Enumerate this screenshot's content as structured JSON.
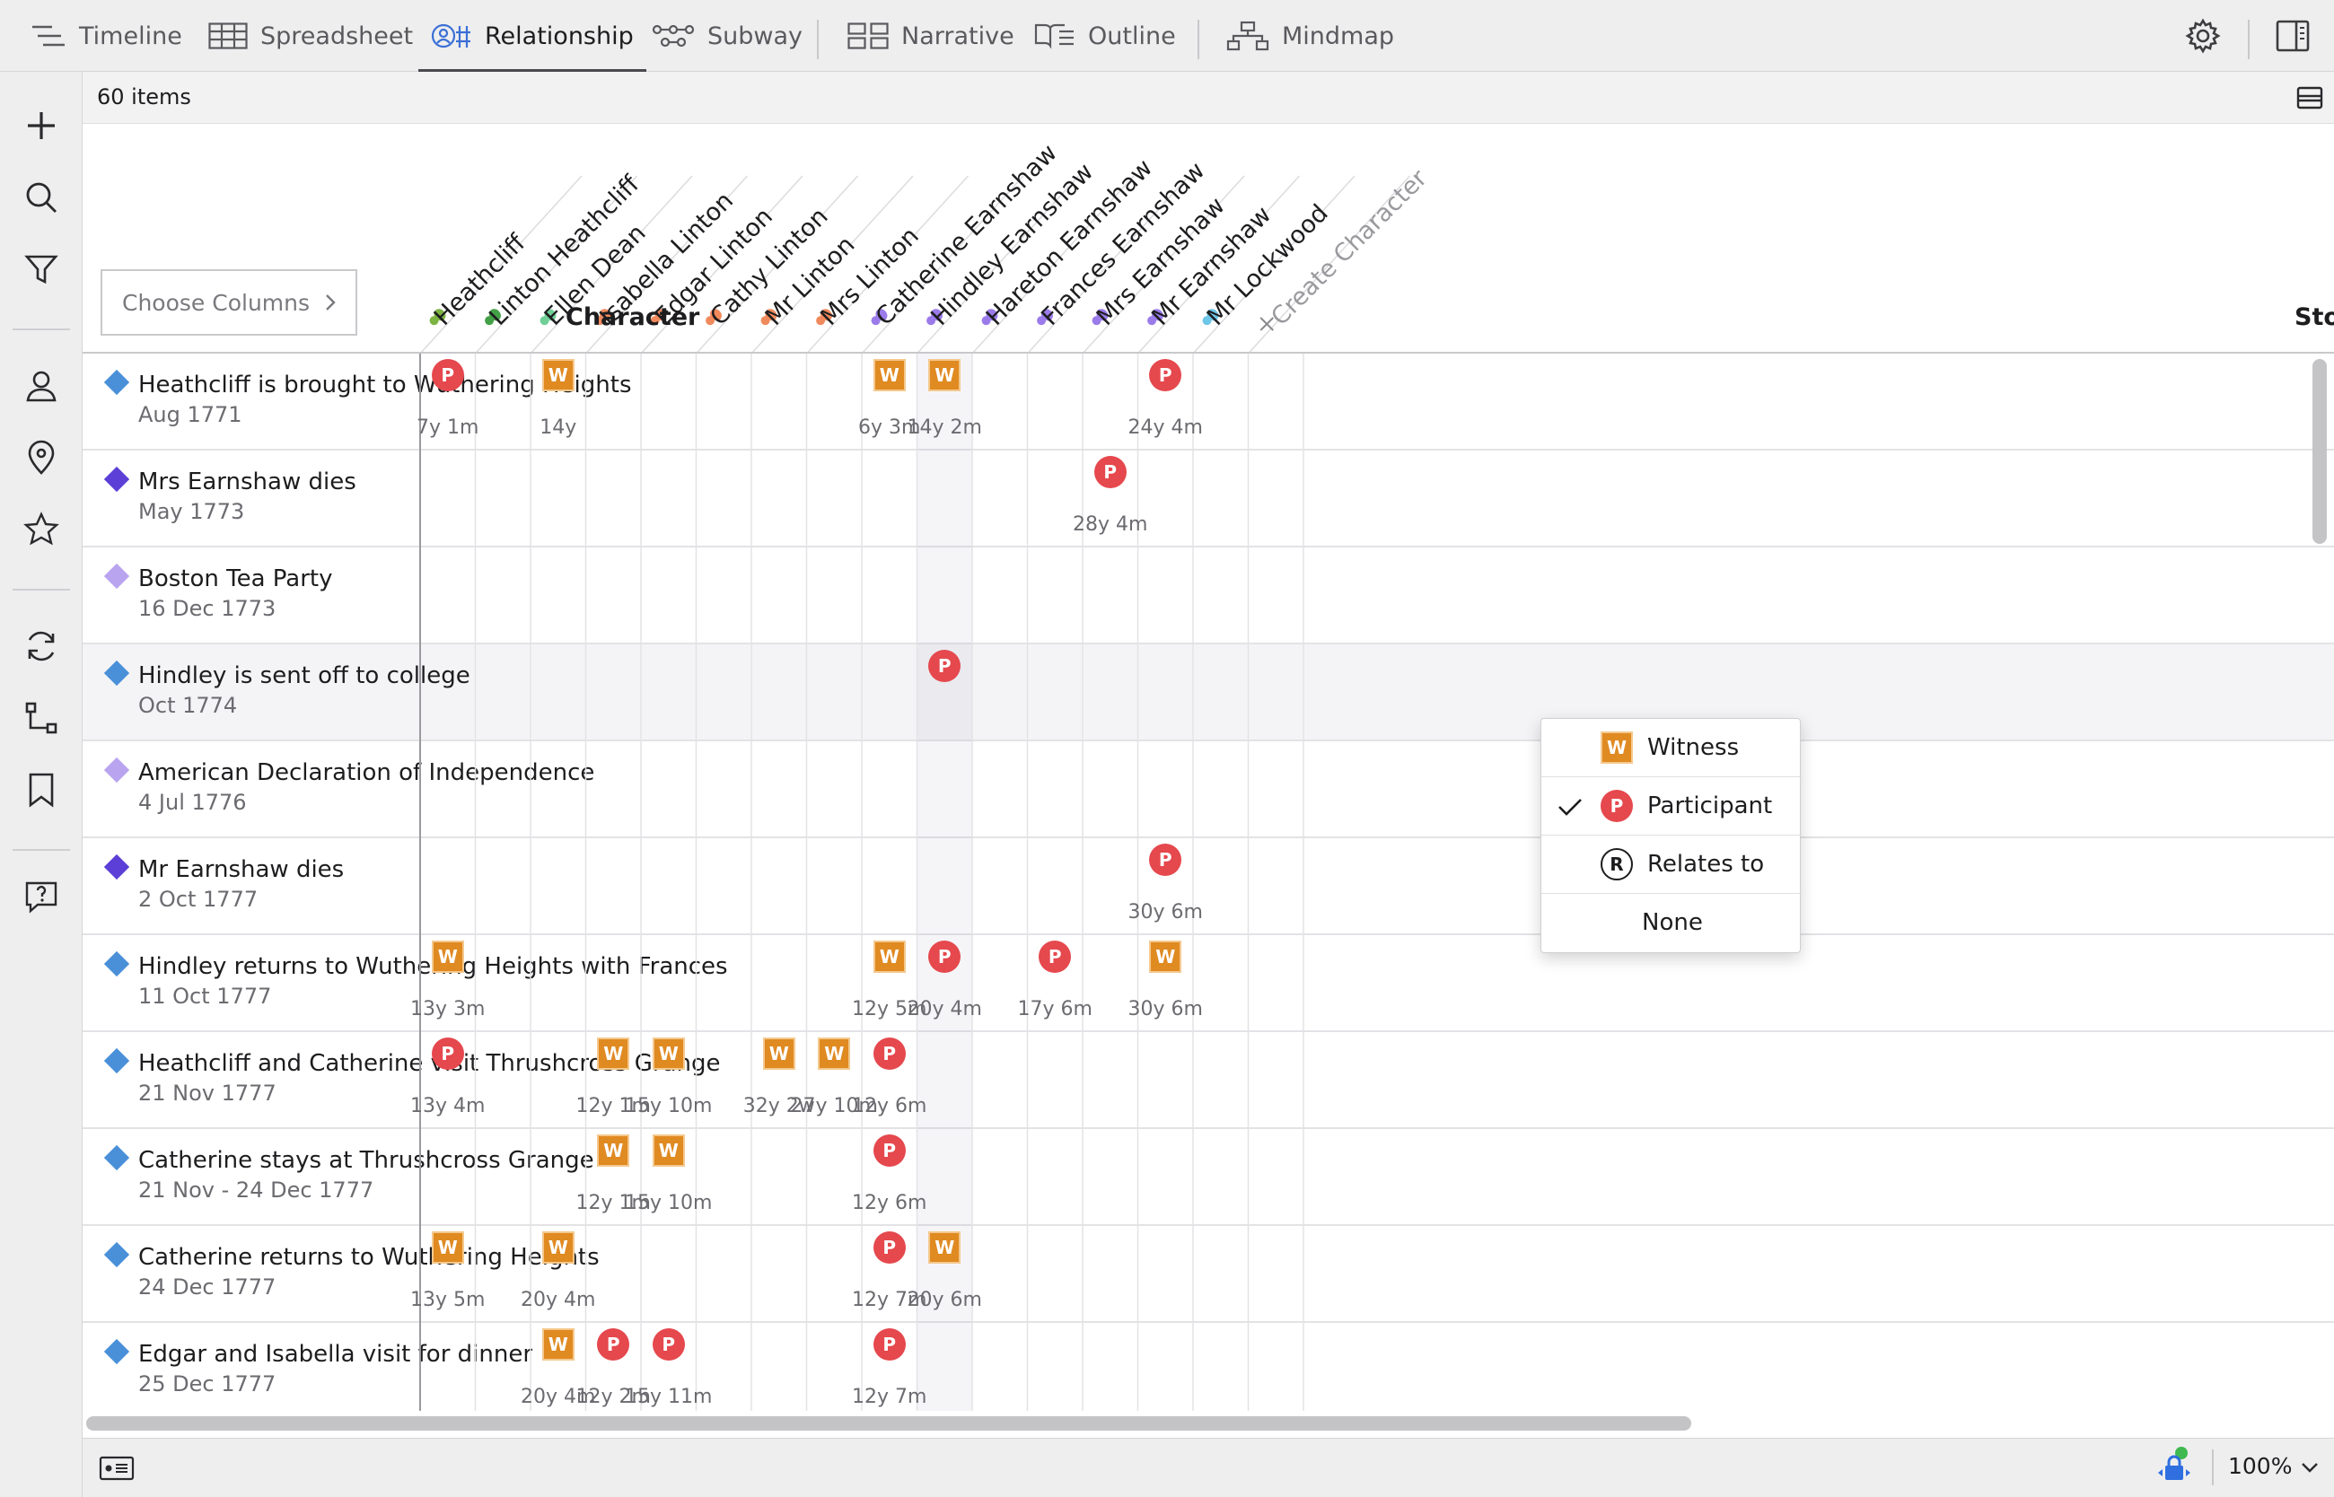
{
  "tabs": [
    {
      "label": "Timeline",
      "icon": "timeline-icon"
    },
    {
      "label": "Spreadsheet",
      "icon": "spreadsheet-icon"
    },
    {
      "label": "Relationship",
      "icon": "relationship-icon",
      "active": true
    },
    {
      "label": "Subway",
      "icon": "subway-icon"
    },
    {
      "label": "Narrative",
      "icon": "narrative-icon"
    },
    {
      "label": "Outline",
      "icon": "outline-icon"
    },
    {
      "label": "Mindmap",
      "icon": "mindmap-icon"
    }
  ],
  "toolbar": {
    "count": "60 items"
  },
  "header": {
    "choose_columns": "Choose Columns",
    "character_label": "Character",
    "next_column_label": "Sto",
    "create_character": "Create Character"
  },
  "columns": [
    {
      "name": "Heathcliff",
      "color": "#7cb342"
    },
    {
      "name": "Linton Heathcliff",
      "color": "#43a047"
    },
    {
      "name": "Ellen Dean",
      "color": "#6fcf97"
    },
    {
      "name": "Isabella Linton",
      "color": "#f08a5d"
    },
    {
      "name": "Edgar Linton",
      "color": "#f08a5d"
    },
    {
      "name": "Cathy Linton",
      "color": "#f08a5d"
    },
    {
      "name": "Mr Linton",
      "color": "#f08a5d"
    },
    {
      "name": "Mrs Linton",
      "color": "#f08a5d"
    },
    {
      "name": "Catherine Earnshaw",
      "color": "#9b7bea"
    },
    {
      "name": "Hindley Earnshaw",
      "color": "#9b7bea"
    },
    {
      "name": "Hareton Earnshaw",
      "color": "#9b7bea"
    },
    {
      "name": "Frances Earnshaw",
      "color": "#9b7bea"
    },
    {
      "name": "Mrs Earnshaw",
      "color": "#9b7bea"
    },
    {
      "name": "Mr Earnshaw",
      "color": "#9b7bea"
    },
    {
      "name": "Mr Lockwood",
      "color": "#6ec6e8"
    }
  ],
  "rows": [
    {
      "title": "Heathcliff is brought to Wuthering Heights",
      "date": "Aug 1771",
      "color": "#4a90d9",
      "cells": [
        {
          "c": 0,
          "m": "P",
          "age": "7y 1m"
        },
        {
          "c": 2,
          "m": "W",
          "age": "14y"
        },
        {
          "c": 8,
          "m": "W",
          "age": "6y 3m"
        },
        {
          "c": 9,
          "m": "W",
          "age": "14y 2m"
        },
        {
          "c": 13,
          "m": "P",
          "age": "24y 4m"
        }
      ]
    },
    {
      "title": "Mrs Earnshaw dies",
      "date": "May 1773",
      "color": "#5b3fd6",
      "cells": [
        {
          "c": 12,
          "m": "P",
          "age": "28y 4m"
        }
      ]
    },
    {
      "title": "Boston Tea Party",
      "date": "16 Dec 1773",
      "color": "#b9a4ef",
      "cells": []
    },
    {
      "title": "Hindley is sent off to college",
      "date": "Oct 1774",
      "color": "#4a90d9",
      "selected": true,
      "cells": [
        {
          "c": 9,
          "m": "P"
        }
      ]
    },
    {
      "title": "American Declaration of Independence",
      "date": "4 Jul 1776",
      "color": "#b9a4ef",
      "cells": []
    },
    {
      "title": "Mr Earnshaw dies",
      "date": "2 Oct 1777",
      "color": "#5b3fd6",
      "cells": [
        {
          "c": 13,
          "m": "P",
          "age": "30y 6m"
        }
      ]
    },
    {
      "title": "Hindley returns to Wuthering Heights with Frances",
      "date": "11 Oct 1777",
      "color": "#4a90d9",
      "cells": [
        {
          "c": 0,
          "m": "W",
          "age": "13y 3m"
        },
        {
          "c": 8,
          "m": "W",
          "age": "12y 5m"
        },
        {
          "c": 9,
          "m": "P",
          "age": "20y 4m"
        },
        {
          "c": 11,
          "m": "P",
          "age": "17y 6m"
        },
        {
          "c": 13,
          "m": "W",
          "age": "30y 6m"
        }
      ]
    },
    {
      "title": "Heathcliff and Catherine visit Thrushcross Grange",
      "date": "21 Nov 1777",
      "color": "#4a90d9",
      "cells": [
        {
          "c": 0,
          "m": "P",
          "age": "13y 4m"
        },
        {
          "c": 3,
          "m": "W",
          "age": "12y 1m"
        },
        {
          "c": 4,
          "m": "W",
          "age": "15y 10m"
        },
        {
          "c": 6,
          "m": "W",
          "age": "32y 2w"
        },
        {
          "c": 7,
          "m": "W",
          "age": "27y 10m"
        },
        {
          "c": 8,
          "m": "P",
          "age": "12y 6m"
        }
      ]
    },
    {
      "title": "Catherine stays at Thrushcross Grange",
      "date": "21 Nov - 24 Dec 1777",
      "color": "#4a90d9",
      "cells": [
        {
          "c": 3,
          "m": "W",
          "age": "12y 1m"
        },
        {
          "c": 4,
          "m": "W",
          "age": "15y 10m"
        },
        {
          "c": 8,
          "m": "P",
          "age": "12y 6m"
        }
      ]
    },
    {
      "title": "Catherine returns to Wuthering Heights",
      "date": "24 Dec 1777",
      "color": "#4a90d9",
      "cells": [
        {
          "c": 0,
          "m": "W",
          "age": "13y 5m"
        },
        {
          "c": 2,
          "m": "W",
          "age": "20y 4m"
        },
        {
          "c": 8,
          "m": "P",
          "age": "12y 7m"
        },
        {
          "c": 9,
          "m": "W",
          "age": "20y 6m"
        }
      ]
    },
    {
      "title": "Edgar and Isabella visit for dinner",
      "date": "25 Dec 1777",
      "color": "#4a90d9",
      "cells": [
        {
          "c": 2,
          "m": "W",
          "age": "20y 4m"
        },
        {
          "c": 3,
          "m": "P",
          "age": "12y 2m"
        },
        {
          "c": 4,
          "m": "P",
          "age": "15y 11m"
        },
        {
          "c": 8,
          "m": "P",
          "age": "12y 7m"
        }
      ]
    }
  ],
  "context_menu": {
    "items": [
      {
        "label": "Witness",
        "badge": "W"
      },
      {
        "label": "Participant",
        "badge": "P",
        "checked": true
      },
      {
        "label": "Relates to",
        "badge": "R"
      },
      {
        "label": "None",
        "badge": ""
      }
    ]
  },
  "status": {
    "zoom": "100%"
  }
}
